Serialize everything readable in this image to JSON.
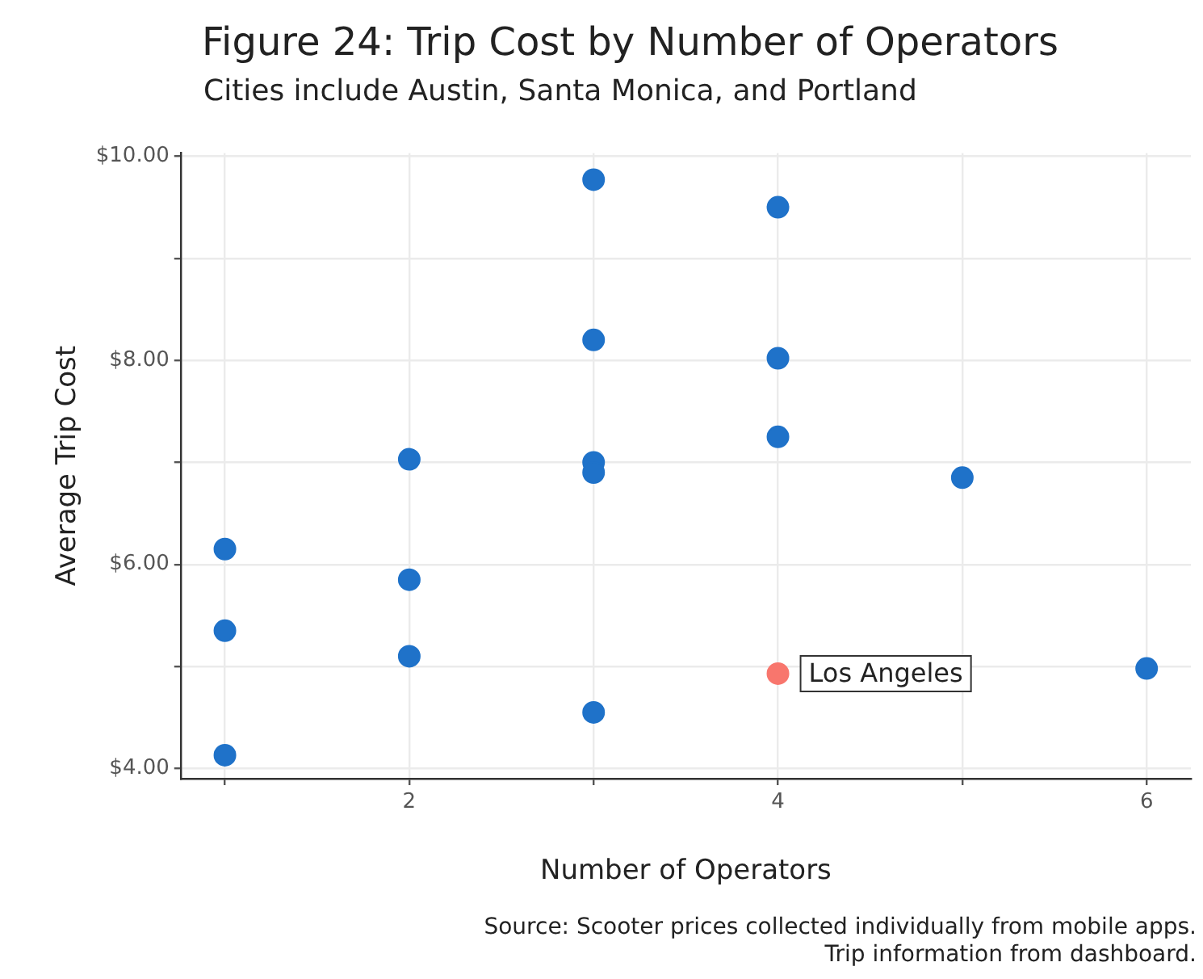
{
  "chart_data": {
    "type": "scatter",
    "title": "Figure 24: Trip Cost by Number of Operators",
    "subtitle": "Cities include Austin, Santa Monica, and Portland",
    "xlabel": "Number of Operators",
    "ylabel": "Average Trip Cost",
    "series": [
      {
        "color": "#1f72c9",
        "x": [
          1,
          1,
          1,
          2,
          2,
          2,
          3,
          3,
          3,
          3,
          3,
          4,
          4,
          4,
          5,
          6
        ],
        "values": [
          6.15,
          5.35,
          4.13,
          7.03,
          5.85,
          5.1,
          9.77,
          8.2,
          7.0,
          6.9,
          4.55,
          9.5,
          8.02,
          7.25,
          6.85,
          4.98
        ]
      },
      {
        "color": "#f8766d",
        "x": [
          4
        ],
        "values": [
          4.93
        ]
      }
    ],
    "xlim": [
      0.76,
      6.24
    ],
    "xticks": [
      {
        "value": 1,
        "label": null
      },
      2,
      {
        "value": 3,
        "label": null
      },
      4,
      {
        "value": 5,
        "label": null
      },
      6
    ],
    "ylim": [
      3.9,
      10.03
    ],
    "yticks": [
      {
        "value": 4,
        "label": "$4.00"
      },
      {
        "value": 5,
        "label": null
      },
      {
        "value": 6,
        "label": "$6.00"
      },
      {
        "value": 7,
        "label": null
      },
      {
        "value": 8,
        "label": "$8.00"
      },
      {
        "value": 9,
        "label": null
      },
      {
        "value": 10,
        "label": "$10.00"
      }
    ],
    "grid": true,
    "marker": "circle",
    "annotations": [
      {
        "text": "Los Angeles",
        "x": 4,
        "y": 4.93
      },
      "Source: Scooter prices collected individually from mobile apps.",
      "Trip information from dashboard."
    ]
  }
}
